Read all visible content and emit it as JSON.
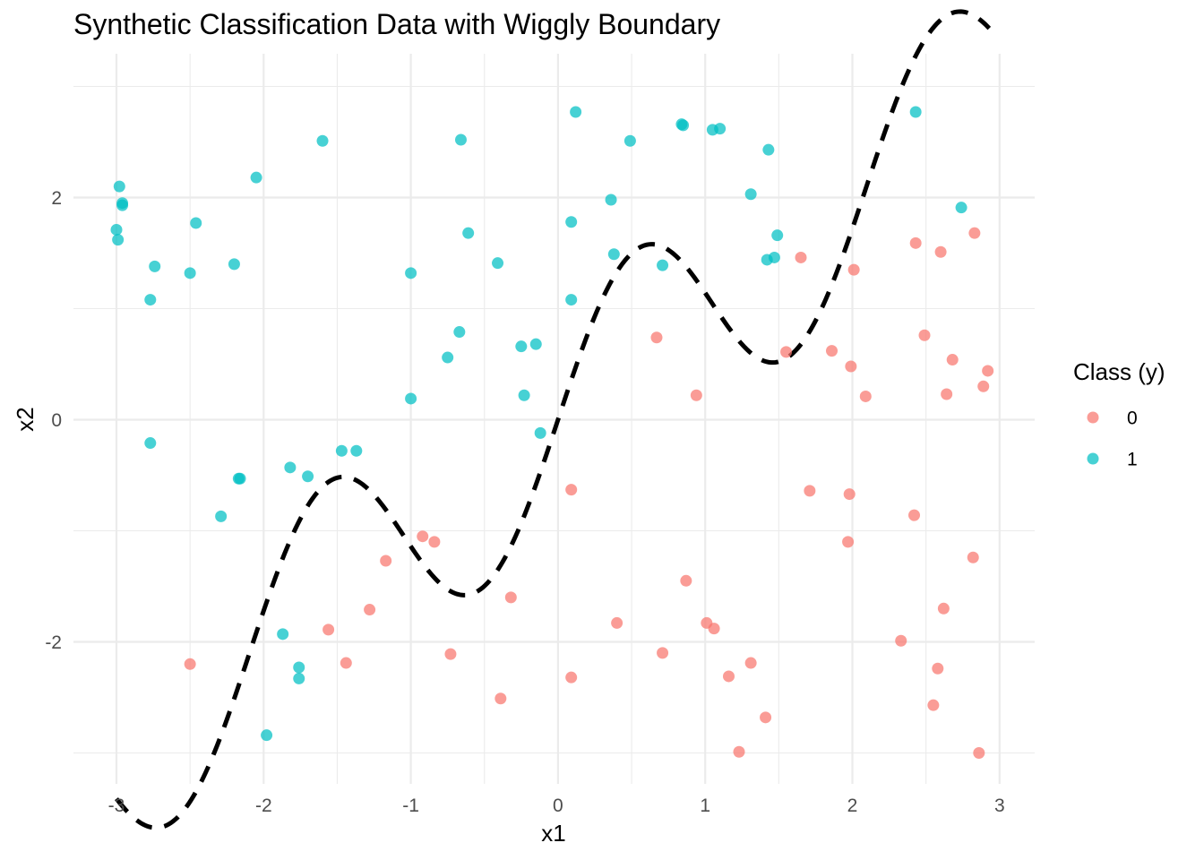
{
  "chart_data": {
    "type": "scatter",
    "title": "Synthetic Classification Data with Wiggly Boundary",
    "xlabel": "x1",
    "ylabel": "x2",
    "xlim": [
      -3.1,
      3.2
    ],
    "ylim": [
      -3.25,
      3.1
    ],
    "x_ticks": [
      -3,
      -2,
      -1,
      0,
      1,
      2,
      3
    ],
    "y_ticks": [
      -2,
      0,
      2
    ],
    "x_tick_labels": [
      "-3",
      "-2",
      "-1",
      "0",
      "1",
      "2",
      "3"
    ],
    "y_tick_labels": [
      "-2",
      "0",
      "2"
    ],
    "grid": true,
    "legend": {
      "title": "Class (y)",
      "placement": "right",
      "entries": [
        {
          "label": "0",
          "color": "#F8766D"
        },
        {
          "label": "1",
          "color": "#00BFC4"
        }
      ]
    },
    "series": [
      {
        "name": "0",
        "color": "#F8766D",
        "points": [
          [
            -2.5,
            -2.2
          ],
          [
            -1.56,
            -1.89
          ],
          [
            -1.44,
            -2.19
          ],
          [
            -1.28,
            -1.71
          ],
          [
            -1.17,
            -1.27
          ],
          [
            -0.92,
            -1.05
          ],
          [
            -0.84,
            -1.1
          ],
          [
            -0.73,
            -2.11
          ],
          [
            -0.39,
            -2.51
          ],
          [
            -0.32,
            -1.6
          ],
          [
            0.09,
            -0.63
          ],
          [
            0.09,
            -2.32
          ],
          [
            0.4,
            -1.83
          ],
          [
            0.67,
            0.74
          ],
          [
            0.71,
            -2.1
          ],
          [
            0.87,
            -1.45
          ],
          [
            0.94,
            0.22
          ],
          [
            1.01,
            -1.83
          ],
          [
            1.06,
            -1.88
          ],
          [
            1.16,
            -2.31
          ],
          [
            1.23,
            -2.99
          ],
          [
            1.31,
            -2.19
          ],
          [
            1.41,
            -2.68
          ],
          [
            1.55,
            0.61
          ],
          [
            1.65,
            1.46
          ],
          [
            1.71,
            -0.64
          ],
          [
            1.86,
            0.62
          ],
          [
            1.97,
            -1.1
          ],
          [
            1.98,
            -0.67
          ],
          [
            1.99,
            0.48
          ],
          [
            2.01,
            1.35
          ],
          [
            2.09,
            0.21
          ],
          [
            2.33,
            -1.99
          ],
          [
            2.42,
            -0.86
          ],
          [
            2.43,
            1.59
          ],
          [
            2.49,
            0.76
          ],
          [
            2.55,
            -2.57
          ],
          [
            2.58,
            -2.24
          ],
          [
            2.6,
            1.51
          ],
          [
            2.62,
            -1.7
          ],
          [
            2.64,
            0.23
          ],
          [
            2.68,
            0.54
          ],
          [
            2.82,
            -1.24
          ],
          [
            2.83,
            1.68
          ],
          [
            2.86,
            -3.0
          ],
          [
            2.89,
            0.3
          ],
          [
            2.92,
            0.44
          ]
        ]
      },
      {
        "name": "1",
        "color": "#00BFC4",
        "points": [
          [
            -3.0,
            1.71
          ],
          [
            -2.99,
            1.62
          ],
          [
            -2.98,
            2.1
          ],
          [
            -2.96,
            1.93
          ],
          [
            -2.96,
            1.95
          ],
          [
            -2.77,
            1.08
          ],
          [
            -2.77,
            -0.21
          ],
          [
            -2.74,
            1.38
          ],
          [
            -2.5,
            1.32
          ],
          [
            -2.46,
            1.77
          ],
          [
            -2.29,
            -0.87
          ],
          [
            -2.2,
            1.4
          ],
          [
            -2.17,
            -0.53
          ],
          [
            -2.16,
            -0.53
          ],
          [
            -2.05,
            2.18
          ],
          [
            -1.98,
            -2.84
          ],
          [
            -1.87,
            -1.93
          ],
          [
            -1.82,
            -0.43
          ],
          [
            -1.76,
            -2.23
          ],
          [
            -1.76,
            -2.33
          ],
          [
            -1.7,
            -0.51
          ],
          [
            -1.6,
            2.51
          ],
          [
            -1.47,
            -0.28
          ],
          [
            -1.37,
            -0.28
          ],
          [
            -1.0,
            0.19
          ],
          [
            -1.0,
            1.32
          ],
          [
            -0.75,
            0.56
          ],
          [
            -0.67,
            0.79
          ],
          [
            -0.66,
            2.52
          ],
          [
            -0.61,
            1.68
          ],
          [
            -0.41,
            1.41
          ],
          [
            -0.25,
            0.66
          ],
          [
            -0.23,
            0.22
          ],
          [
            -0.15,
            0.68
          ],
          [
            -0.12,
            -0.12
          ],
          [
            0.09,
            1.78
          ],
          [
            0.09,
            1.08
          ],
          [
            0.12,
            2.77
          ],
          [
            0.36,
            1.98
          ],
          [
            0.38,
            1.49
          ],
          [
            0.49,
            2.51
          ],
          [
            0.71,
            1.39
          ],
          [
            0.84,
            2.66
          ],
          [
            0.85,
            2.65
          ],
          [
            1.05,
            2.61
          ],
          [
            1.1,
            2.62
          ],
          [
            1.31,
            2.03
          ],
          [
            1.42,
            1.44
          ],
          [
            1.43,
            2.43
          ],
          [
            1.47,
            1.46
          ],
          [
            1.49,
            1.66
          ],
          [
            2.43,
            2.77
          ],
          [
            2.74,
            1.91
          ]
        ]
      }
    ],
    "decision_boundary": {
      "style": "dashed",
      "color": "#000000",
      "formula": "x2 = x1 + sin(3 * x1)",
      "x_range": [
        -3,
        2.93
      ]
    }
  }
}
